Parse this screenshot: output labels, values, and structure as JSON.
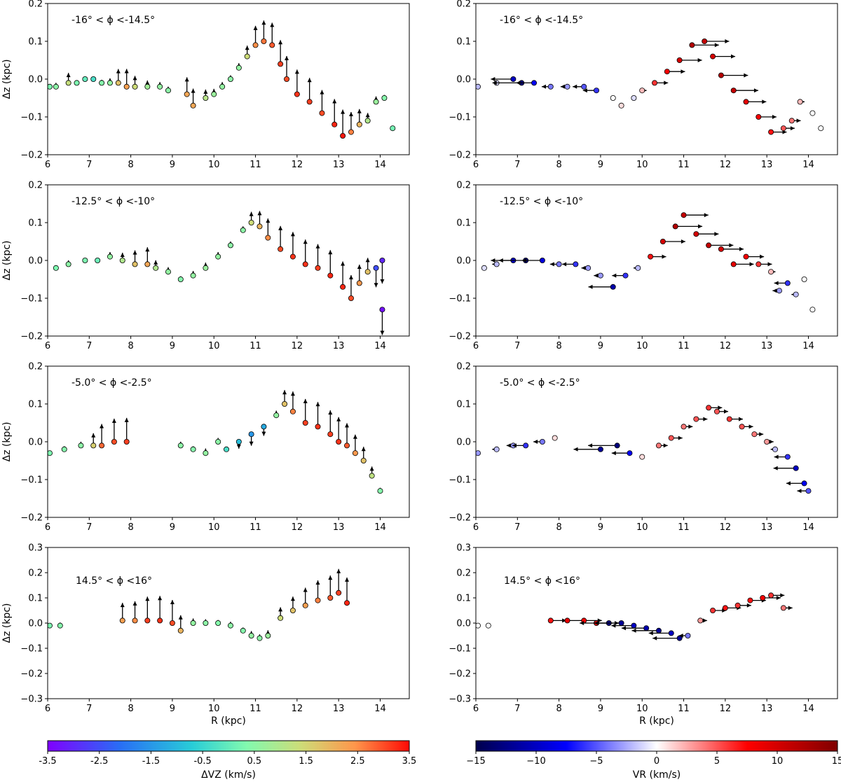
{
  "figure": {
    "xlabel": "R (kpc)",
    "ylabel": "Δz (kpc)",
    "left_colorbar": {
      "label": "ΔVZ (km/s)",
      "min": -3.5,
      "max": 3.5,
      "ticks": [
        "-3.5",
        "-2.5",
        "-1.5",
        "-0.5",
        "0.5",
        "1.5",
        "2.5",
        "3.5"
      ]
    },
    "right_colorbar": {
      "label": "VR (km/s)",
      "min": -15,
      "max": 15,
      "ticks": [
        "−15",
        "−10",
        "−5",
        "0",
        "5",
        "10",
        "15"
      ]
    }
  },
  "chart_data": [
    {
      "type": "scatter",
      "col": 0,
      "row": 0,
      "title": "-16° < ϕ <-14.5°",
      "xlim": [
        6,
        14.7
      ],
      "ylim": [
        -0.2,
        0.2
      ],
      "xticks": [
        "6",
        "7",
        "8",
        "9",
        "10",
        "11",
        "12",
        "13",
        "14"
      ],
      "yticks": [
        "−0.2",
        "−0.1",
        "0.0",
        "0.1",
        "0.2"
      ],
      "color_variable": "ΔVZ",
      "points": [
        [
          6.05,
          -0.02,
          0.3
        ],
        [
          6.2,
          -0.02,
          0.5
        ],
        [
          6.5,
          -0.01,
          1.3
        ],
        [
          6.7,
          -0.01,
          0.3
        ],
        [
          6.9,
          0.0,
          0.0
        ],
        [
          7.1,
          0.0,
          -0.3
        ],
        [
          7.3,
          -0.01,
          0.4
        ],
        [
          7.5,
          -0.01,
          0.6
        ],
        [
          7.7,
          -0.01,
          1.8
        ],
        [
          7.9,
          -0.02,
          2.3
        ],
        [
          8.1,
          -0.02,
          1.4
        ],
        [
          8.4,
          -0.02,
          0.8
        ],
        [
          8.7,
          -0.02,
          0.6
        ],
        [
          8.9,
          -0.03,
          0.5
        ],
        [
          9.35,
          -0.04,
          2.2
        ],
        [
          9.5,
          -0.07,
          2.2
        ],
        [
          9.8,
          -0.05,
          1.1
        ],
        [
          10.0,
          -0.04,
          0.7
        ],
        [
          10.2,
          -0.02,
          0.6
        ],
        [
          10.4,
          0.0,
          0.5
        ],
        [
          10.6,
          0.03,
          0.6
        ],
        [
          10.8,
          0.06,
          1.4
        ],
        [
          11.0,
          0.09,
          2.5
        ],
        [
          11.2,
          0.1,
          2.7
        ],
        [
          11.4,
          0.09,
          2.9
        ],
        [
          11.6,
          0.04,
          3.1
        ],
        [
          11.75,
          0.0,
          3.0
        ],
        [
          12.0,
          -0.04,
          3.2
        ],
        [
          12.3,
          -0.06,
          3.1
        ],
        [
          12.6,
          -0.09,
          3.0
        ],
        [
          12.9,
          -0.12,
          3.3
        ],
        [
          13.1,
          -0.15,
          3.4
        ],
        [
          13.3,
          -0.14,
          2.6
        ],
        [
          13.5,
          -0.12,
          2.0
        ],
        [
          13.7,
          -0.11,
          1.0
        ],
        [
          13.9,
          -0.06,
          0.7
        ],
        [
          14.1,
          -0.05,
          0.4
        ],
        [
          14.3,
          -0.13,
          0.2
        ]
      ]
    },
    {
      "type": "scatter",
      "col": 1,
      "row": 0,
      "title": "-16° < ϕ <-14.5°",
      "xlim": [
        6,
        14.7
      ],
      "ylim": [
        -0.2,
        0.2
      ],
      "xticks": [
        "6",
        "7",
        "8",
        "9",
        "10",
        "11",
        "12",
        "13",
        "14"
      ],
      "yticks": [
        "−0.2",
        "−0.1",
        "0.0",
        "0.1",
        "0.2"
      ],
      "color_variable": "VR",
      "points": [
        [
          6.05,
          -0.02,
          -2
        ],
        [
          6.5,
          -0.01,
          -1
        ],
        [
          6.9,
          0.0,
          -10
        ],
        [
          7.1,
          -0.01,
          -13
        ],
        [
          7.4,
          -0.01,
          -8
        ],
        [
          7.8,
          -0.02,
          -4
        ],
        [
          8.2,
          -0.02,
          -3
        ],
        [
          8.6,
          -0.02,
          -5
        ],
        [
          8.9,
          -0.03,
          -6
        ],
        [
          9.3,
          -0.05,
          0
        ],
        [
          9.5,
          -0.07,
          1
        ],
        [
          9.8,
          -0.05,
          -1
        ],
        [
          10.0,
          -0.03,
          2
        ],
        [
          10.3,
          -0.01,
          6
        ],
        [
          10.6,
          0.02,
          8
        ],
        [
          10.9,
          0.05,
          10
        ],
        [
          11.2,
          0.09,
          12
        ],
        [
          11.5,
          0.1,
          11
        ],
        [
          11.7,
          0.06,
          10
        ],
        [
          11.9,
          0.01,
          12
        ],
        [
          12.2,
          -0.03,
          11
        ],
        [
          12.5,
          -0.06,
          9
        ],
        [
          12.8,
          -0.1,
          8
        ],
        [
          13.1,
          -0.14,
          7
        ],
        [
          13.4,
          -0.13,
          5
        ],
        [
          13.6,
          -0.11,
          4
        ],
        [
          13.8,
          -0.06,
          2
        ],
        [
          14.1,
          -0.09,
          0
        ],
        [
          14.3,
          -0.13,
          0
        ]
      ]
    },
    {
      "type": "scatter",
      "col": 0,
      "row": 1,
      "title": "-12.5° < ϕ <-10°",
      "xlim": [
        6,
        14.7
      ],
      "ylim": [
        -0.2,
        0.2
      ],
      "xticks": [
        "6",
        "7",
        "8",
        "9",
        "10",
        "11",
        "12",
        "13",
        "14"
      ],
      "yticks": [
        "−0.2",
        "−0.1",
        "0.0",
        "0.1",
        "0.2"
      ],
      "color_variable": "ΔVZ",
      "points": [
        [
          6.2,
          -0.02,
          0.3
        ],
        [
          6.5,
          -0.01,
          0.5
        ],
        [
          6.9,
          0.0,
          0.3
        ],
        [
          7.2,
          0.0,
          0.1
        ],
        [
          7.5,
          0.01,
          0.6
        ],
        [
          7.8,
          0.0,
          1.0
        ],
        [
          8.1,
          -0.01,
          1.8
        ],
        [
          8.4,
          -0.01,
          2.2
        ],
        [
          8.6,
          -0.02,
          1.0
        ],
        [
          8.9,
          -0.03,
          0.6
        ],
        [
          9.2,
          -0.05,
          0.4
        ],
        [
          9.5,
          -0.04,
          0.6
        ],
        [
          9.8,
          -0.02,
          0.7
        ],
        [
          10.1,
          0.01,
          0.6
        ],
        [
          10.4,
          0.04,
          0.5
        ],
        [
          10.7,
          0.08,
          0.5
        ],
        [
          10.9,
          0.1,
          1.4
        ],
        [
          11.1,
          0.09,
          2.0
        ],
        [
          11.3,
          0.06,
          2.5
        ],
        [
          11.6,
          0.03,
          3.0
        ],
        [
          11.9,
          0.01,
          3.2
        ],
        [
          12.2,
          -0.01,
          3.2
        ],
        [
          12.5,
          -0.02,
          3.1
        ],
        [
          12.8,
          -0.04,
          3.3
        ],
        [
          13.1,
          -0.07,
          3.3
        ],
        [
          13.3,
          -0.1,
          3.0
        ],
        [
          13.5,
          -0.06,
          2.4
        ],
        [
          13.7,
          -0.03,
          1.8
        ],
        [
          13.9,
          -0.02,
          -2.5
        ],
        [
          14.05,
          0.0,
          -3.0
        ],
        [
          14.05,
          -0.13,
          -3.3
        ]
      ]
    },
    {
      "type": "scatter",
      "col": 1,
      "row": 1,
      "title": "-12.5° < ϕ <-10°",
      "xlim": [
        6,
        14.7
      ],
      "ylim": [
        -0.2,
        0.2
      ],
      "xticks": [
        "6",
        "7",
        "8",
        "9",
        "10",
        "11",
        "12",
        "13",
        "14"
      ],
      "yticks": [
        "−0.2",
        "−0.1",
        "0.0",
        "0.1",
        "0.2"
      ],
      "color_variable": "VR",
      "points": [
        [
          6.2,
          -0.02,
          -1
        ],
        [
          6.5,
          -0.01,
          -2
        ],
        [
          6.9,
          0.0,
          -10
        ],
        [
          7.2,
          0.0,
          -12
        ],
        [
          7.6,
          0.0,
          -9
        ],
        [
          8.0,
          -0.01,
          -4
        ],
        [
          8.4,
          -0.01,
          -6
        ],
        [
          8.7,
          -0.02,
          -3
        ],
        [
          9.0,
          -0.04,
          -3
        ],
        [
          9.3,
          -0.07,
          -11
        ],
        [
          9.6,
          -0.04,
          -6
        ],
        [
          9.9,
          -0.02,
          -2
        ],
        [
          10.2,
          0.01,
          7
        ],
        [
          10.5,
          0.05,
          10
        ],
        [
          10.8,
          0.09,
          12
        ],
        [
          11.0,
          0.12,
          11
        ],
        [
          11.3,
          0.07,
          10
        ],
        [
          11.6,
          0.04,
          11
        ],
        [
          11.9,
          0.03,
          10
        ],
        [
          12.2,
          -0.01,
          9
        ],
        [
          12.5,
          0.01,
          8
        ],
        [
          12.8,
          -0.01,
          6
        ],
        [
          13.1,
          -0.03,
          2
        ],
        [
          13.3,
          -0.08,
          -3
        ],
        [
          13.5,
          -0.06,
          -6
        ],
        [
          13.7,
          -0.09,
          -2
        ],
        [
          13.9,
          -0.05,
          0
        ],
        [
          14.1,
          -0.13,
          0
        ]
      ]
    },
    {
      "type": "scatter",
      "col": 0,
      "row": 2,
      "title": "-5.0° < ϕ <-2.5°",
      "xlim": [
        6,
        14.7
      ],
      "ylim": [
        -0.2,
        0.2
      ],
      "xticks": [
        "6",
        "7",
        "8",
        "9",
        "10",
        "11",
        "12",
        "13",
        "14"
      ],
      "yticks": [
        "−0.2",
        "−0.1",
        "0.0",
        "0.1",
        "0.2"
      ],
      "color_variable": "ΔVZ",
      "points": [
        [
          6.05,
          -0.03,
          0.3
        ],
        [
          6.4,
          -0.02,
          0.4
        ],
        [
          6.8,
          -0.01,
          0.5
        ],
        [
          7.1,
          -0.01,
          1.6
        ],
        [
          7.3,
          -0.01,
          2.8
        ],
        [
          7.6,
          0.0,
          3.0
        ],
        [
          7.9,
          0.0,
          3.1
        ],
        [
          9.2,
          -0.01,
          0.5
        ],
        [
          9.5,
          -0.02,
          0.4
        ],
        [
          9.8,
          -0.03,
          0.6
        ],
        [
          10.1,
          0.0,
          0.5
        ],
        [
          10.3,
          -0.02,
          -0.3
        ],
        [
          10.6,
          0.0,
          -0.9
        ],
        [
          10.9,
          0.02,
          -1.5
        ],
        [
          11.2,
          0.04,
          -1.2
        ],
        [
          11.5,
          0.07,
          0.6
        ],
        [
          11.7,
          0.1,
          1.8
        ],
        [
          11.9,
          0.08,
          2.6
        ],
        [
          12.2,
          0.05,
          3.1
        ],
        [
          12.5,
          0.04,
          3.2
        ],
        [
          12.8,
          0.02,
          3.1
        ],
        [
          13.0,
          0.0,
          3.2
        ],
        [
          13.2,
          -0.01,
          2.9
        ],
        [
          13.4,
          -0.03,
          2.4
        ],
        [
          13.6,
          -0.05,
          1.8
        ],
        [
          13.8,
          -0.09,
          1.2
        ],
        [
          14.0,
          -0.13,
          0.4
        ]
      ]
    },
    {
      "type": "scatter",
      "col": 1,
      "row": 2,
      "title": "-5.0° < ϕ <-2.5°",
      "xlim": [
        6,
        14.7
      ],
      "ylim": [
        -0.2,
        0.2
      ],
      "xticks": [
        "6",
        "7",
        "8",
        "9",
        "10",
        "11",
        "12",
        "13",
        "14"
      ],
      "yticks": [
        "−0.2",
        "−0.1",
        "0.0",
        "0.1",
        "0.2"
      ],
      "color_variable": "VR",
      "points": [
        [
          6.05,
          -0.03,
          -3
        ],
        [
          6.5,
          -0.02,
          -2
        ],
        [
          6.9,
          -0.01,
          -3
        ],
        [
          7.2,
          -0.01,
          -6
        ],
        [
          7.6,
          0.0,
          -4
        ],
        [
          7.9,
          0.01,
          1
        ],
        [
          9.0,
          -0.02,
          -12
        ],
        [
          9.4,
          -0.01,
          -13
        ],
        [
          9.7,
          -0.03,
          -8
        ],
        [
          10.0,
          -0.04,
          1
        ],
        [
          10.4,
          -0.01,
          4
        ],
        [
          10.7,
          0.01,
          5
        ],
        [
          11.0,
          0.04,
          4
        ],
        [
          11.3,
          0.06,
          5
        ],
        [
          11.6,
          0.09,
          6
        ],
        [
          11.8,
          0.08,
          5
        ],
        [
          12.1,
          0.06,
          6
        ],
        [
          12.4,
          0.04,
          5
        ],
        [
          12.7,
          0.02,
          4
        ],
        [
          13.0,
          0.0,
          3
        ],
        [
          13.2,
          -0.02,
          -2
        ],
        [
          13.5,
          -0.04,
          -6
        ],
        [
          13.7,
          -0.07,
          -10
        ],
        [
          13.9,
          -0.11,
          -8
        ],
        [
          14.0,
          -0.13,
          -5
        ]
      ]
    },
    {
      "type": "scatter",
      "col": 0,
      "row": 3,
      "title": "14.5° < ϕ <16°",
      "xlim": [
        6,
        14.7
      ],
      "ylim": [
        -0.3,
        0.3
      ],
      "xticks": [
        "6",
        "7",
        "8",
        "9",
        "10",
        "11",
        "12",
        "13",
        "14"
      ],
      "yticks": [
        "−0.3",
        "−0.2",
        "−0.1",
        "0.0",
        "0.1",
        "0.2",
        "0.3"
      ],
      "color_variable": "ΔVZ",
      "points": [
        [
          6.05,
          -0.01,
          0.3
        ],
        [
          6.3,
          -0.01,
          0.4
        ],
        [
          7.8,
          0.01,
          2.3
        ],
        [
          8.1,
          0.01,
          2.5
        ],
        [
          8.4,
          0.01,
          3.1
        ],
        [
          8.7,
          0.01,
          3.2
        ],
        [
          9.0,
          0.0,
          3.0
        ],
        [
          9.2,
          -0.03,
          2.0
        ],
        [
          9.5,
          0.0,
          0.6
        ],
        [
          9.8,
          0.0,
          0.5
        ],
        [
          10.1,
          0.0,
          0.4
        ],
        [
          10.4,
          -0.01,
          0.5
        ],
        [
          10.7,
          -0.03,
          0.4
        ],
        [
          10.9,
          -0.05,
          0.6
        ],
        [
          11.1,
          -0.06,
          0.5
        ],
        [
          11.3,
          -0.05,
          0.7
        ],
        [
          11.6,
          0.02,
          1.4
        ],
        [
          11.9,
          0.05,
          1.8
        ],
        [
          12.2,
          0.07,
          2.3
        ],
        [
          12.5,
          0.09,
          2.6
        ],
        [
          12.8,
          0.1,
          2.9
        ],
        [
          13.0,
          0.12,
          3.1
        ],
        [
          13.2,
          0.08,
          3.3
        ]
      ]
    },
    {
      "type": "scatter",
      "col": 1,
      "row": 3,
      "title": "14.5° < ϕ <16°",
      "xlim": [
        6,
        14.7
      ],
      "ylim": [
        -0.3,
        0.3
      ],
      "xticks": [
        "6",
        "7",
        "8",
        "9",
        "10",
        "11",
        "12",
        "13",
        "14"
      ],
      "yticks": [
        "−0.3",
        "−0.2",
        "−0.1",
        "0.0",
        "0.1",
        "0.2",
        "0.3"
      ],
      "color_variable": "VR",
      "points": [
        [
          6.05,
          -0.01,
          0
        ],
        [
          6.3,
          -0.01,
          0
        ],
        [
          7.8,
          0.01,
          7
        ],
        [
          8.2,
          0.01,
          9
        ],
        [
          8.6,
          0.01,
          8
        ],
        [
          8.9,
          0.0,
          10
        ],
        [
          9.2,
          0.0,
          -13
        ],
        [
          9.5,
          0.0,
          -12
        ],
        [
          9.8,
          -0.01,
          -10
        ],
        [
          10.1,
          -0.02,
          -11
        ],
        [
          10.4,
          -0.03,
          -12
        ],
        [
          10.7,
          -0.04,
          -10
        ],
        [
          10.9,
          -0.06,
          -12
        ],
        [
          11.1,
          -0.05,
          -4
        ],
        [
          11.4,
          0.01,
          3
        ],
        [
          11.7,
          0.05,
          6
        ],
        [
          12.0,
          0.06,
          7
        ],
        [
          12.3,
          0.07,
          6
        ],
        [
          12.6,
          0.09,
          7
        ],
        [
          12.9,
          0.1,
          8
        ],
        [
          13.1,
          0.11,
          6
        ],
        [
          13.4,
          0.06,
          4
        ]
      ]
    }
  ]
}
